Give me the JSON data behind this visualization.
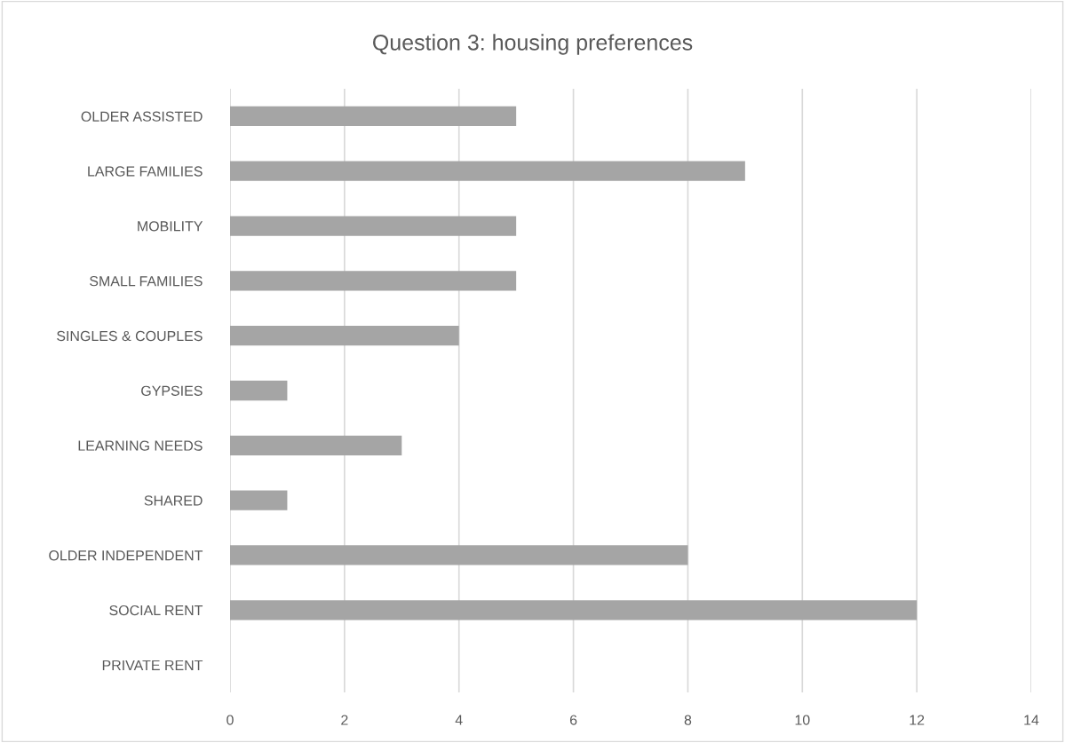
{
  "chart_data": {
    "type": "bar",
    "orientation": "horizontal",
    "title": "Question 3: housing preferences",
    "categories": [
      "OLDER ASSISTED",
      "LARGE FAMILIES",
      "MOBILITY",
      "SMALL FAMILIES",
      "SINGLES & COUPLES",
      "GYPSIES",
      "LEARNING NEEDS",
      "SHARED",
      "OLDER INDEPENDENT",
      "SOCIAL RENT",
      "PRIVATE RENT"
    ],
    "values": [
      5,
      9,
      5,
      5,
      4,
      1,
      3,
      1,
      8,
      12,
      0
    ],
    "color": "#a5a5a5",
    "xlim": [
      0,
      14
    ],
    "xticks": [
      0,
      2,
      4,
      6,
      8,
      10,
      12,
      14
    ],
    "grid": "x",
    "legend": false
  }
}
